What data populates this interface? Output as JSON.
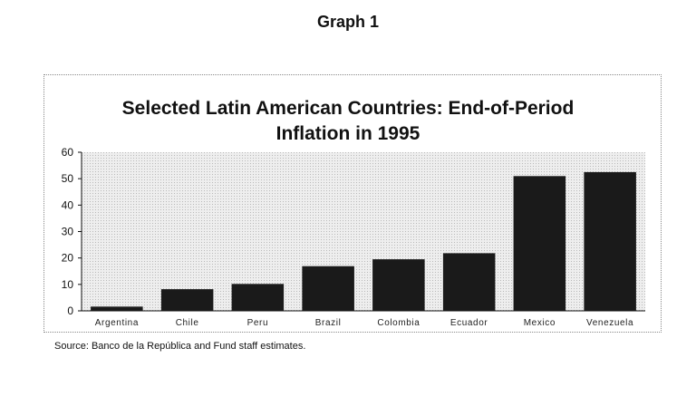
{
  "header": {
    "graph_label": "Graph 1"
  },
  "source": "Source: Banco de la República and Fund staff estimates.",
  "colors": {
    "bar": "#1a1a1a",
    "plot_bg": "#dcdcdc",
    "axis": "#111111"
  },
  "chart_data": {
    "type": "bar",
    "title": "Selected Latin American Countries: End-of-Period Inflation in 1995",
    "title_lines": [
      "Selected Latin American Countries: End-of-Period",
      "Inflation in 1995"
    ],
    "categories": [
      "Argentina",
      "Chile",
      "Peru",
      "Brazil",
      "Colombia",
      "Ecuador",
      "Mexico",
      "Venezuela"
    ],
    "values": [
      1.6,
      8.2,
      10.2,
      16.9,
      19.5,
      21.8,
      51.0,
      52.5
    ],
    "xlabel": "",
    "ylabel": "",
    "ylim": [
      0,
      60
    ],
    "yticks": [
      0,
      10,
      20,
      30,
      40,
      50,
      60
    ],
    "grid": false,
    "legend": "none"
  }
}
